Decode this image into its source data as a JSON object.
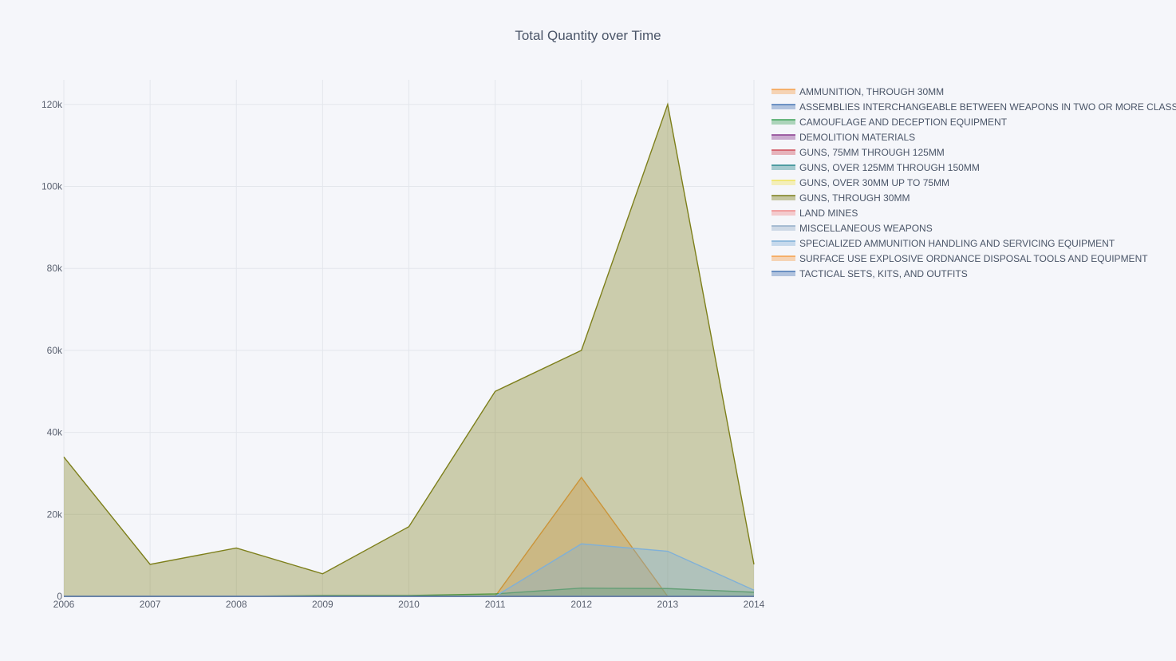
{
  "chart_data": {
    "type": "area",
    "title": "Total Quantity over Time",
    "xlabel": "",
    "ylabel": "",
    "x": [
      2006,
      2007,
      2008,
      2009,
      2010,
      2011,
      2012,
      2013,
      2014
    ],
    "x_tick_labels": [
      "2006",
      "2007",
      "2008",
      "2009",
      "2010",
      "2011",
      "2012",
      "2013",
      "2014"
    ],
    "xlim": [
      2006,
      2014
    ],
    "ylim": [
      0,
      126000
    ],
    "y_ticks": [
      0,
      20000,
      40000,
      60000,
      80000,
      100000,
      120000
    ],
    "y_tick_labels": [
      "0",
      "20k",
      "40k",
      "60k",
      "80k",
      "100k",
      "120k"
    ],
    "grid": true,
    "legend_position": "right",
    "series": [
      {
        "name": "AMMUNITION, THROUGH 30MM",
        "color": "#f5a04a",
        "values": [
          0,
          0,
          0,
          0,
          0,
          0,
          29000,
          0,
          0
        ]
      },
      {
        "name": "ASSEMBLIES INTERCHANGEABLE BETWEEN WEAPONS IN TWO OR MORE CLASSES",
        "color": "#4a78b5",
        "values": [
          0,
          0,
          0,
          0,
          0,
          0,
          0,
          0,
          0
        ]
      },
      {
        "name": "CAMOUFLAGE AND DECEPTION EQUIPMENT",
        "color": "#3fa35a",
        "values": [
          0,
          0,
          0,
          200,
          200,
          600,
          2000,
          1900,
          1000
        ]
      },
      {
        "name": "DEMOLITION MATERIALS",
        "color": "#8a3c8f",
        "values": [
          0,
          0,
          0,
          0,
          0,
          0,
          0,
          0,
          0
        ]
      },
      {
        "name": "GUNS, 75MM THROUGH 125MM",
        "color": "#d04e5a",
        "values": [
          0,
          0,
          0,
          0,
          0,
          0,
          0,
          0,
          0
        ]
      },
      {
        "name": "GUNS, OVER 125MM THROUGH 150MM",
        "color": "#2c8a8f",
        "values": [
          0,
          0,
          0,
          0,
          0,
          0,
          0,
          0,
          0
        ]
      },
      {
        "name": "GUNS, OVER 30MM UP TO 75MM",
        "color": "#f0e45a",
        "values": [
          0,
          0,
          0,
          0,
          0,
          0,
          0,
          0,
          0
        ]
      },
      {
        "name": "GUNS, THROUGH 30MM",
        "color": "#7d7f1a",
        "values": [
          34000,
          7800,
          11800,
          5500,
          17000,
          50000,
          60000,
          120000,
          7800
        ]
      },
      {
        "name": "LAND MINES",
        "color": "#f08a8a",
        "values": [
          0,
          0,
          0,
          0,
          0,
          0,
          0,
          0,
          0
        ]
      },
      {
        "name": "MISCELLANEOUS WEAPONS",
        "color": "#94aec8",
        "values": [
          0,
          0,
          0,
          0,
          0,
          0,
          0,
          0,
          0
        ]
      },
      {
        "name": "SPECIALIZED AMMUNITION HANDLING AND SERVICING EQUIPMENT",
        "color": "#7fb0d8",
        "values": [
          0,
          0,
          0,
          0,
          0,
          0,
          12800,
          11000,
          1500
        ]
      },
      {
        "name": "SURFACE USE EXPLOSIVE ORDNANCE DISPOSAL TOOLS AND EQUIPMENT",
        "color": "#f5a04a",
        "values": [
          0,
          0,
          0,
          0,
          0,
          0,
          0,
          0,
          0
        ]
      },
      {
        "name": "TACTICAL SETS, KITS, AND OUTFITS",
        "color": "#4a78b5",
        "values": [
          0,
          0,
          0,
          0,
          0,
          0,
          0,
          0,
          0
        ]
      }
    ]
  }
}
